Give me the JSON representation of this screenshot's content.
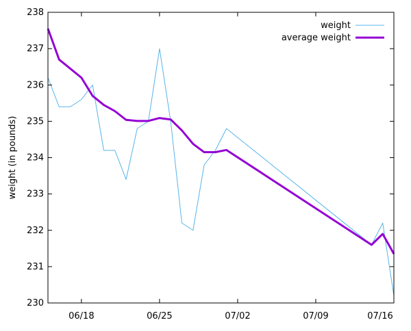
{
  "chart_data": {
    "type": "line",
    "title": "",
    "xlabel": "",
    "ylabel": "weight (in pounds)",
    "grid": false,
    "legend_placement": "top-right",
    "ylim": [
      230,
      238
    ],
    "xlim": [
      "2017-06-15",
      "2017-07-16"
    ],
    "y_ticks": [
      230,
      231,
      232,
      233,
      234,
      235,
      236,
      237,
      238
    ],
    "x_ticks": [
      {
        "date": "2017-06-18",
        "label": "06/18"
      },
      {
        "date": "2017-06-25",
        "label": "06/25"
      },
      {
        "date": "2017-07-02",
        "label": "07/02"
      },
      {
        "date": "2017-07-09",
        "label": "07/09"
      },
      {
        "date": "2017-07-16",
        "label": "07/16"
      }
    ],
    "series": [
      {
        "name": "weight",
        "color": "#56b4e9",
        "style": "thin",
        "points": [
          {
            "x": "2017-06-15",
            "y": 236.2
          },
          {
            "x": "2017-06-16",
            "y": 235.4
          },
          {
            "x": "2017-06-17",
            "y": 235.4
          },
          {
            "x": "2017-06-18",
            "y": 235.6
          },
          {
            "x": "2017-06-19",
            "y": 236.0
          },
          {
            "x": "2017-06-20",
            "y": 234.2
          },
          {
            "x": "2017-06-21",
            "y": 234.2
          },
          {
            "x": "2017-06-22",
            "y": 233.4
          },
          {
            "x": "2017-06-23",
            "y": 234.8
          },
          {
            "x": "2017-06-24",
            "y": 235.0
          },
          {
            "x": "2017-06-25",
            "y": 237.0
          },
          {
            "x": "2017-06-26",
            "y": 235.0
          },
          {
            "x": "2017-06-27",
            "y": 232.2
          },
          {
            "x": "2017-06-28",
            "y": 232.0
          },
          {
            "x": "2017-06-29",
            "y": 233.8
          },
          {
            "x": "2017-06-30",
            "y": 234.2
          },
          {
            "x": "2017-07-01",
            "y": 234.8
          },
          {
            "x": "2017-07-14",
            "y": 231.6
          },
          {
            "x": "2017-07-15",
            "y": 232.2
          },
          {
            "x": "2017-07-16",
            "y": 230.2
          }
        ]
      },
      {
        "name": "average weight",
        "color": "#9400d3",
        "style": "thick",
        "points": [
          {
            "x": "2017-06-15",
            "y": 237.55
          },
          {
            "x": "2017-06-16",
            "y": 236.7
          },
          {
            "x": "2017-06-17",
            "y": 236.45
          },
          {
            "x": "2017-06-18",
            "y": 236.2
          },
          {
            "x": "2017-06-19",
            "y": 235.7
          },
          {
            "x": "2017-06-20",
            "y": 235.45
          },
          {
            "x": "2017-06-21",
            "y": 235.28
          },
          {
            "x": "2017-06-22",
            "y": 235.04
          },
          {
            "x": "2017-06-23",
            "y": 235.01
          },
          {
            "x": "2017-06-24",
            "y": 235.01
          },
          {
            "x": "2017-06-25",
            "y": 235.09
          },
          {
            "x": "2017-06-26",
            "y": 235.05
          },
          {
            "x": "2017-06-27",
            "y": 234.75
          },
          {
            "x": "2017-06-28",
            "y": 234.38
          },
          {
            "x": "2017-06-29",
            "y": 234.15
          },
          {
            "x": "2017-06-30",
            "y": 234.15
          },
          {
            "x": "2017-07-01",
            "y": 234.21
          },
          {
            "x": "2017-07-14",
            "y": 231.6
          },
          {
            "x": "2017-07-15",
            "y": 231.9
          },
          {
            "x": "2017-07-16",
            "y": 231.35
          }
        ]
      }
    ]
  }
}
